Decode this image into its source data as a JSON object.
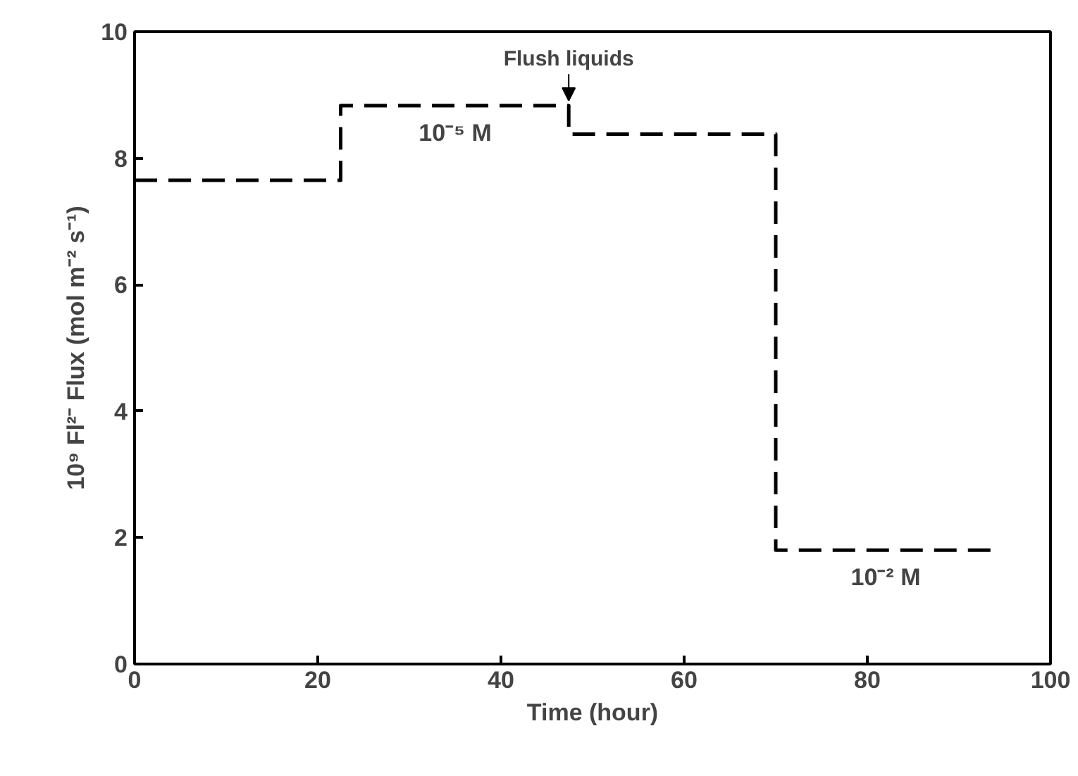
{
  "chart_data": {
    "type": "step",
    "xlabel": "Time (hour)",
    "ylabel": "10⁹ Fl²⁻ Flux (mol m⁻² s⁻¹)",
    "x": [
      0,
      22.5,
      47.4,
      70,
      94
    ],
    "series": [
      {
        "color": "#000000",
        "values": [
          7.65,
          8.83,
          8.38,
          1.8,
          1.8
        ]
      }
    ],
    "xlim": [
      0,
      100
    ],
    "xticks": [
      0,
      20,
      40,
      60,
      80,
      100
    ],
    "ylim": [
      0,
      10
    ],
    "yticks": [
      0,
      2,
      4,
      6,
      8,
      10
    ],
    "grid": false,
    "line_style": "dashed",
    "annotations": [
      {
        "text": "Flush liquids",
        "x": 47.4,
        "y": 8.83
      },
      {
        "text": "10⁻⁵ M",
        "x": 35,
        "y": 8.83
      },
      {
        "text": "10⁻² M",
        "x": 82,
        "y": 1.8
      }
    ]
  }
}
